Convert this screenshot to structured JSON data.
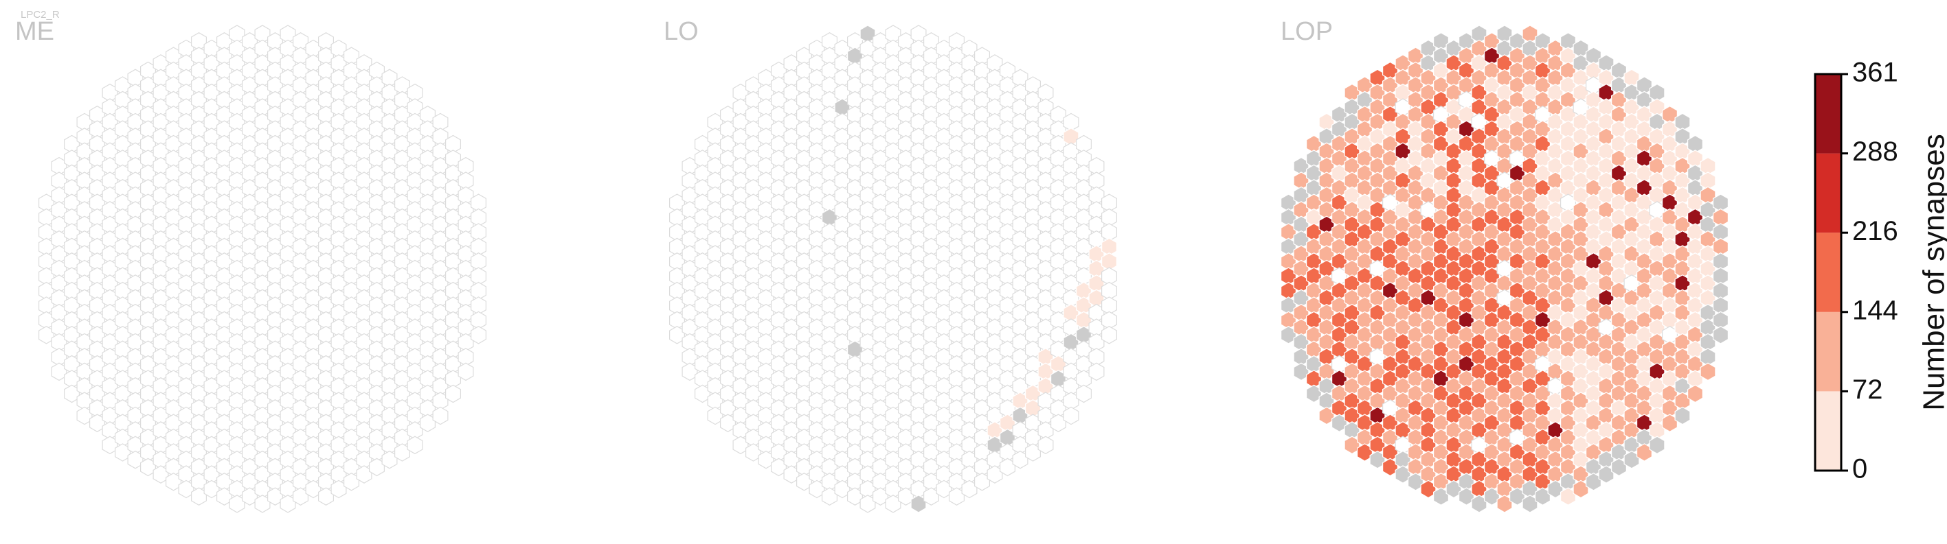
{
  "cell_type": "LPC2_R",
  "colors": {
    "empty_fill": "#ffffff",
    "empty_stroke": "#dcdcdc",
    "missing_fill": "#cccccc",
    "bins": [
      "#fde6dc",
      "#f9b197",
      "#f26b4c",
      "#d42c26",
      "#99121a"
    ]
  },
  "chart_data": [
    {
      "type": "heatmap",
      "title": "ME",
      "layout": "hexagonal columns",
      "values_summary": "all columns 0 synapses",
      "cells": []
    },
    {
      "type": "heatmap",
      "title": "LO",
      "layout": "hexagonal columns",
      "cells": [
        {
          "hx": 10,
          "hy": -21,
          "v": null
        },
        {
          "hx": 12,
          "hy": -19,
          "v": null
        },
        {
          "hx": -3,
          "hy": -15,
          "v": null
        },
        {
          "hx": -2,
          "hy": -16,
          "v": null
        },
        {
          "hx": -4,
          "hy": -11,
          "v": null
        },
        {
          "hx": -5,
          "hy": -4,
          "v": null
        },
        {
          "hx": -3,
          "hy": 5,
          "v": null
        },
        {
          "hx": 14,
          "hy": -9,
          "v": 30
        },
        {
          "hx": 16,
          "hy": 0,
          "v": 20
        },
        {
          "hx": 17,
          "hy": -2,
          "v": 25
        },
        {
          "hx": 16,
          "hy": -1,
          "v": 30
        },
        {
          "hx": 17,
          "hy": -1,
          "v": 25
        },
        {
          "hx": 16,
          "hy": 1,
          "v": 20
        },
        {
          "hx": 15,
          "hy": 1,
          "v": 30
        },
        {
          "hx": 15,
          "hy": 2,
          "v": 25
        },
        {
          "hx": 16,
          "hy": 2,
          "v": 20
        },
        {
          "hx": 15,
          "hy": 3,
          "v": 30
        },
        {
          "hx": 14,
          "hy": 3,
          "v": 20
        },
        {
          "hx": 15,
          "hy": 4,
          "v": null
        },
        {
          "hx": 13,
          "hy": 6,
          "v": 25
        },
        {
          "hx": 12,
          "hy": 6,
          "v": 20
        },
        {
          "hx": 12,
          "hy": 7,
          "v": 30
        },
        {
          "hx": 11,
          "hy": 8,
          "v": 25
        },
        {
          "hx": 14,
          "hy": 5,
          "v": null
        },
        {
          "hx": 13,
          "hy": 7,
          "v": null
        },
        {
          "hx": 10,
          "hy": 9,
          "v": 20
        },
        {
          "hx": 11,
          "hy": 9,
          "v": 25
        },
        {
          "hx": 9,
          "hy": 10,
          "v": 30
        },
        {
          "hx": 8,
          "hy": 11,
          "v": 20
        },
        {
          "hx": 12,
          "hy": 8,
          "v": 20
        },
        {
          "hx": 10,
          "hy": 10,
          "v": null
        },
        {
          "hx": 9,
          "hy": 11,
          "v": null
        },
        {
          "hx": 8,
          "hy": 12,
          "v": null
        },
        {
          "hx": 1,
          "hy": 16,
          "v": null
        },
        {
          "hx": 2,
          "hy": 16,
          "v": null
        },
        {
          "hx": 3,
          "hy": 16,
          "v": null
        },
        {
          "hx": 4,
          "hy": 16,
          "v": null
        },
        {
          "hx": 5,
          "hy": 16,
          "v": null
        }
      ]
    },
    {
      "type": "heatmap",
      "title": "LOP",
      "layout": "hexagonal columns",
      "values_summary": "columns colored 0–361 synapses; grey cells at rim"
    }
  ],
  "colorbar": {
    "label": "Number of synapses",
    "ticks": [
      "0",
      "72",
      "144",
      "216",
      "288",
      "361"
    ],
    "min": 0,
    "max": 361
  }
}
